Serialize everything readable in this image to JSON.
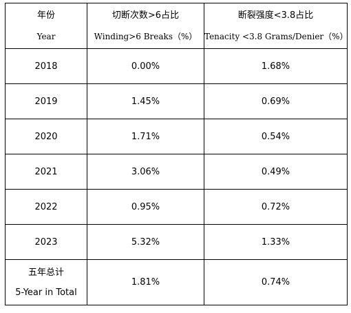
{
  "header": {
    "col1_cn": "年份",
    "col1_en": "Year",
    "col2_cn": "切断次数>6占比",
    "col2_en": "Winding>6 Breaks（%）",
    "col3_cn": "断裂强度<3.8占比",
    "col3_en": "Tenacity <3.8 Grams/Denier（%）"
  },
  "rows": [
    {
      "year": "2018",
      "breaks": "0.00%",
      "tenacity": "1.68%"
    },
    {
      "year": "2019",
      "breaks": "1.45%",
      "tenacity": "0.69%"
    },
    {
      "year": "2020",
      "breaks": "1.71%",
      "tenacity": "0.54%"
    },
    {
      "year": "2021",
      "breaks": "3.06%",
      "tenacity": "0.49%"
    },
    {
      "year": "2022",
      "breaks": "0.95%",
      "tenacity": "0.72%"
    },
    {
      "year": "2023",
      "breaks": "5.32%",
      "tenacity": "1.33%"
    }
  ],
  "total": {
    "label_cn": "五年总计",
    "label_en": "5-Year in Total",
    "breaks": "1.81%",
    "tenacity": "0.74%"
  }
}
